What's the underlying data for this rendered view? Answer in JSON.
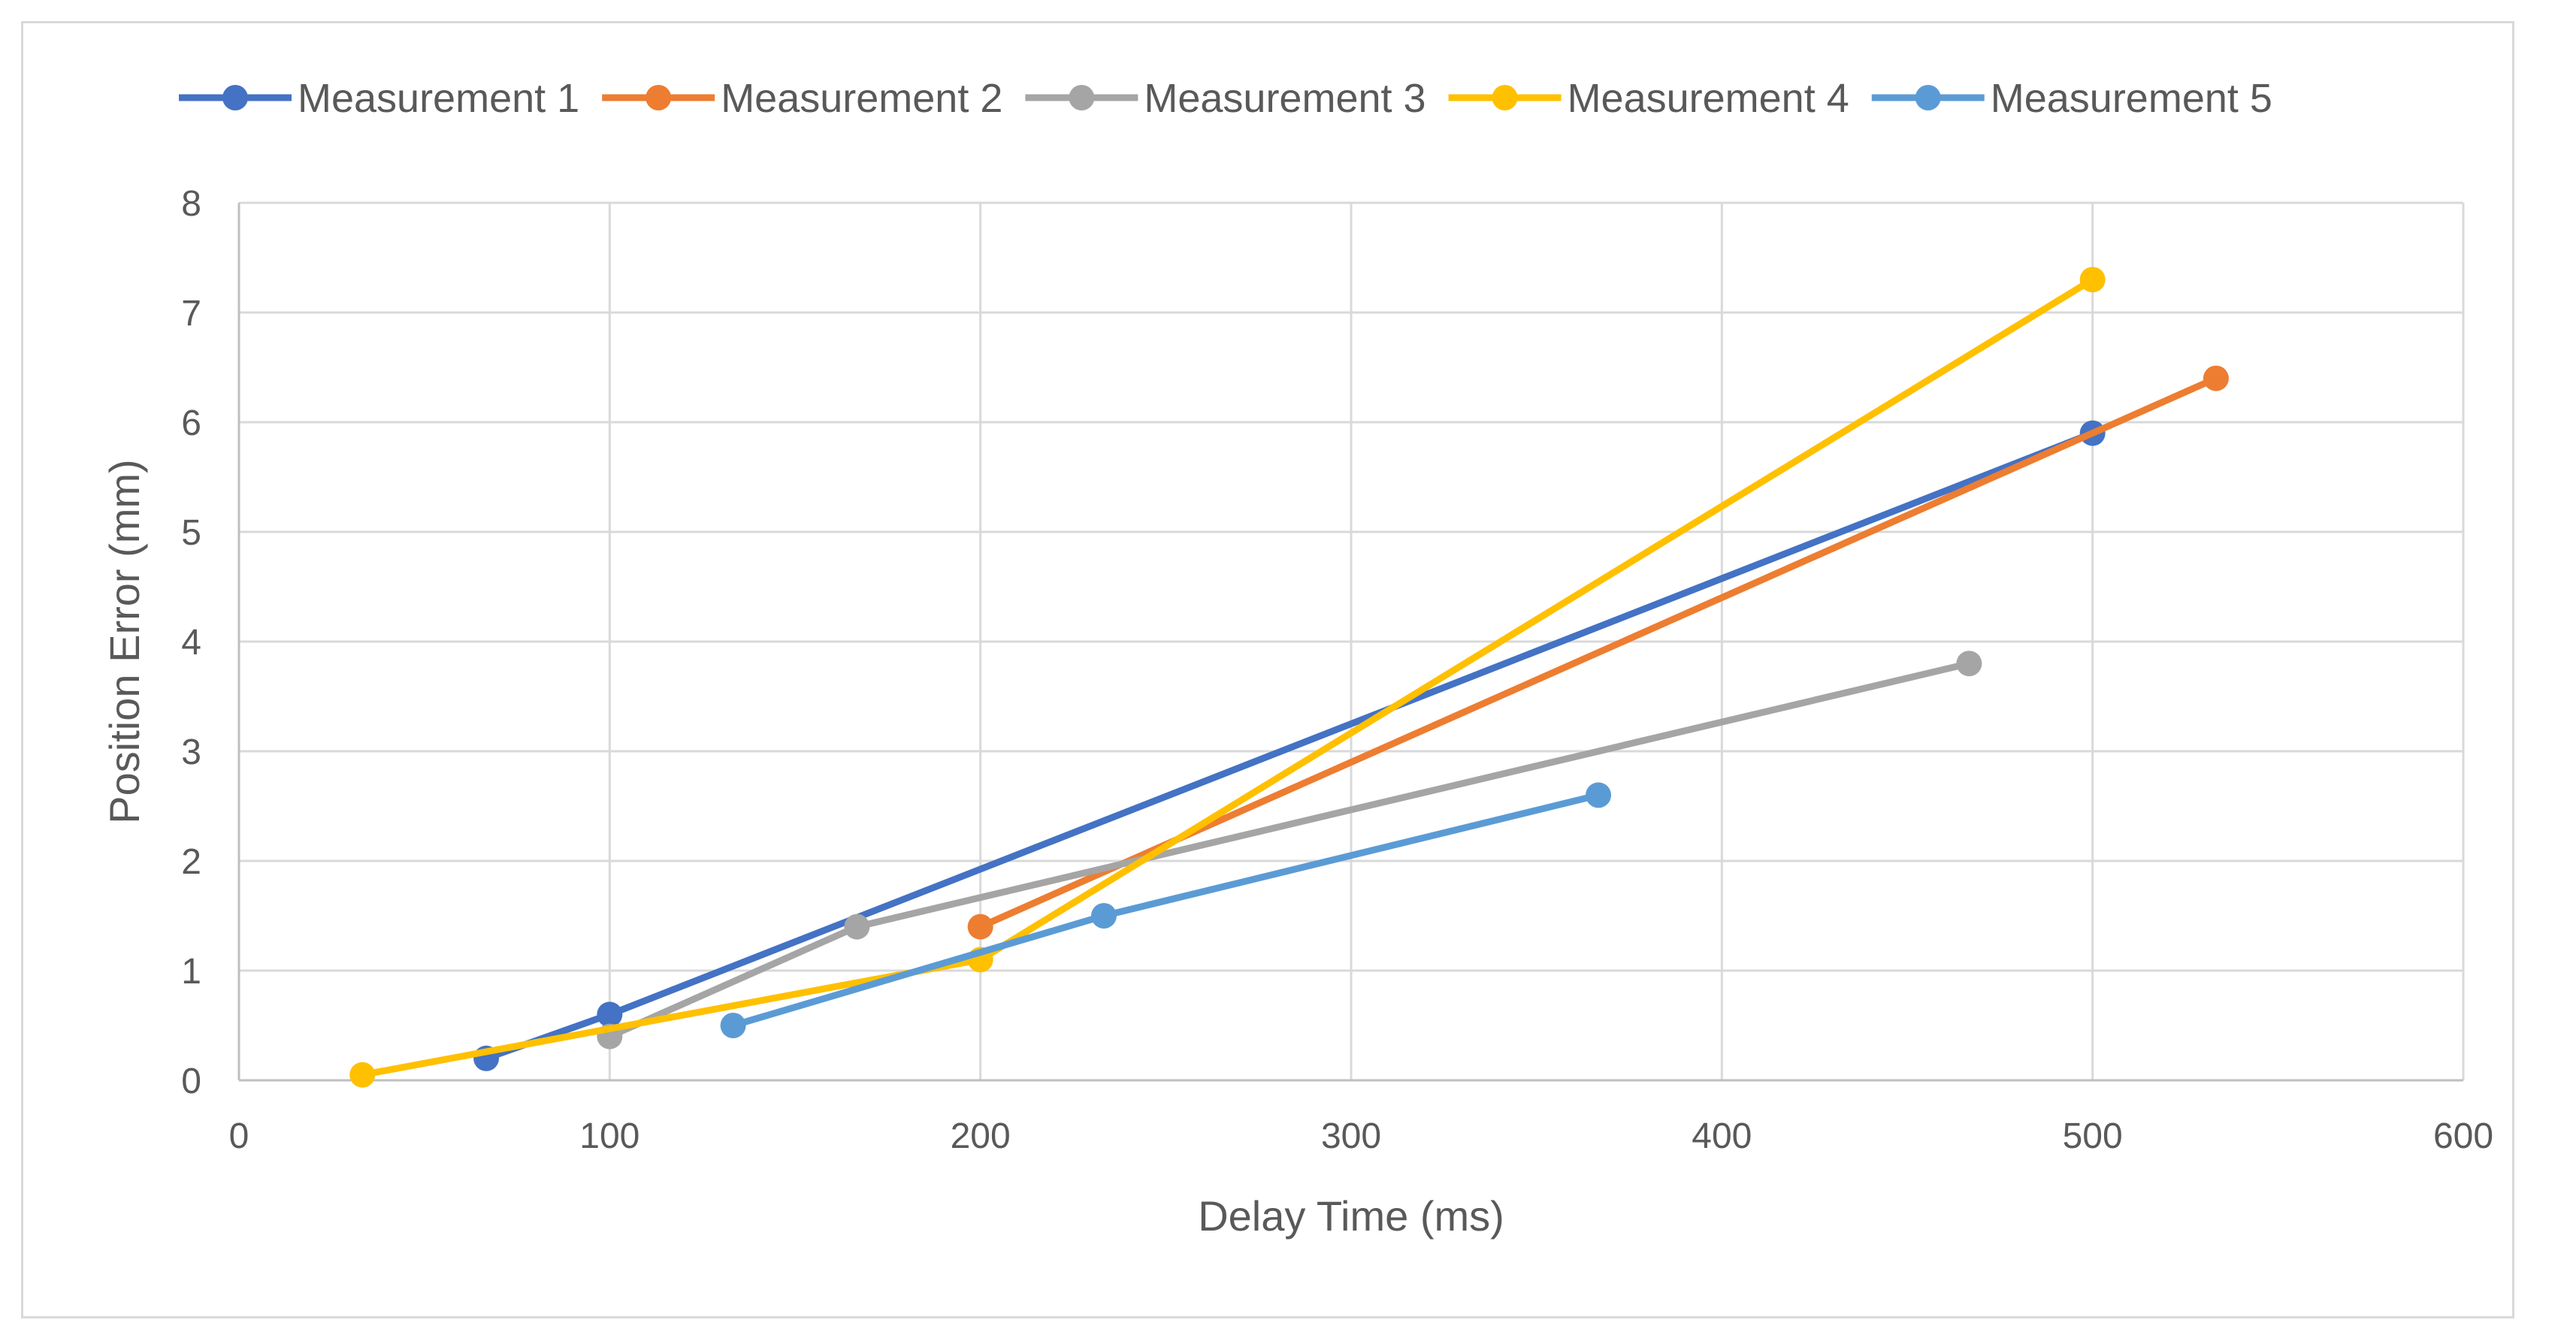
{
  "chart_data": {
    "type": "line",
    "title": "",
    "xlabel": "Delay Time (ms)",
    "ylabel": "Position Error (mm)",
    "xlim": [
      0,
      600
    ],
    "ylim": [
      0,
      8
    ],
    "xticks": [
      0,
      100,
      200,
      300,
      400,
      500,
      600
    ],
    "yticks": [
      0,
      1,
      2,
      3,
      4,
      5,
      6,
      7,
      8
    ],
    "grid": true,
    "legend_position": "top",
    "series": [
      {
        "name": "Measurement 1",
        "color": "#4472C4",
        "points": [
          [
            66.7,
            0.2
          ],
          [
            100,
            0.6
          ],
          [
            500,
            5.9
          ]
        ]
      },
      {
        "name": "Measurement 2",
        "color": "#ED7D31",
        "points": [
          [
            200,
            1.4
          ],
          [
            533.3,
            6.4
          ]
        ]
      },
      {
        "name": "Measurement 3",
        "color": "#A5A5A5",
        "points": [
          [
            100,
            0.4
          ],
          [
            166.7,
            1.4
          ],
          [
            466.7,
            3.8
          ]
        ]
      },
      {
        "name": "Measurement 4",
        "color": "#FFC000",
        "points": [
          [
            33.3,
            0.05
          ],
          [
            200,
            1.1
          ],
          [
            500,
            7.3
          ]
        ]
      },
      {
        "name": "Measurement 5",
        "color": "#5B9BD5",
        "points": [
          [
            133.3,
            0.5
          ],
          [
            233.3,
            1.5
          ],
          [
            366.7,
            2.6
          ]
        ]
      }
    ]
  }
}
